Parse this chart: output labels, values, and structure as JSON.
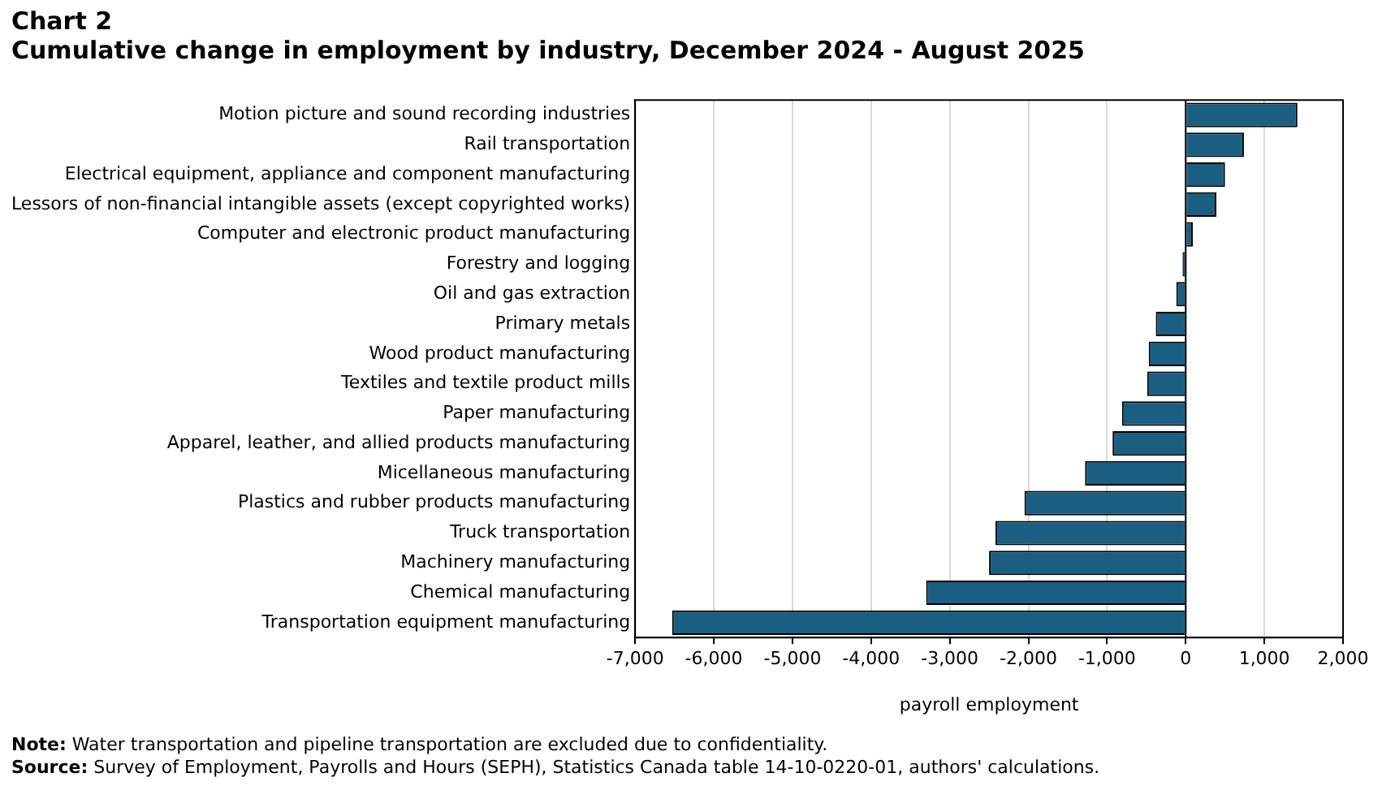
{
  "chart_data": {
    "type": "bar",
    "orientation": "horizontal",
    "title": "Chart 2",
    "subtitle": "Cumulative change in employment by industry, December 2024 - August 2025",
    "categories": [
      "Motion picture and sound recording industries",
      "Rail transportation",
      "Electrical equipment, appliance and component manufacturing",
      "Lessors of non-financial intangible assets (except copyrighted works)",
      "Computer and electronic product manufacturing",
      "Forestry and logging",
      "Oil and gas extraction",
      "Primary metals",
      "Wood product manufacturing",
      "Textiles and textile product mills",
      "Paper manufacturing",
      "Apparel, leather, and allied products manufacturing",
      "Micellaneous manufacturing",
      "Plastics and rubber products manufacturing",
      "Truck transportation",
      "Machinery manufacturing",
      "Chemical manufacturing",
      "Transportation equipment manufacturing"
    ],
    "values": [
      1420,
      740,
      500,
      390,
      90,
      -40,
      -120,
      -380,
      -470,
      -490,
      -810,
      -930,
      -1280,
      -2050,
      -2420,
      -2500,
      -3300,
      -6530
    ],
    "color": "#1a5f82",
    "xlabel": "payroll employment",
    "xlim": [
      -7000,
      2000
    ],
    "xticks": [
      {
        "value": -7000,
        "label": "-7,000"
      },
      {
        "value": -6000,
        "label": "-6,000"
      },
      {
        "value": -5000,
        "label": "-5,000"
      },
      {
        "value": -4000,
        "label": "-4,000"
      },
      {
        "value": -3000,
        "label": "-3,000"
      },
      {
        "value": -2000,
        "label": "-2,000"
      },
      {
        "value": -1000,
        "label": "-1,000"
      },
      0,
      {
        "value": 1000,
        "label": "1,000"
      },
      {
        "value": 2000,
        "label": "2,000"
      }
    ],
    "grid": "x",
    "legend": false,
    "annotations": [
      "Note: Water transportation and pipeline transportation are excluded due to confidentiality.",
      "Source: Survey of Employment, Payrolls and Hours (SEPH), Statistics Canada table 14-10-0220-01, authors' calculations."
    ]
  }
}
